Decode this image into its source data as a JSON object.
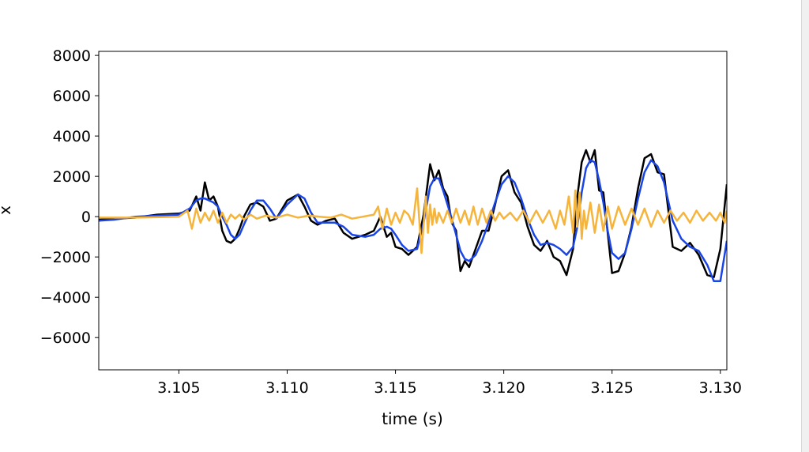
{
  "chart_data": {
    "type": "line",
    "title": "",
    "xlabel": "time (s)",
    "ylabel": "x",
    "xlim": [
      3.1013,
      3.1303
    ],
    "ylim": [
      -7600,
      8200
    ],
    "grid": false,
    "legend": "none",
    "xticks": [
      3.105,
      3.11,
      3.115,
      3.12,
      3.125,
      3.13
    ],
    "xtick_labels": [
      "3.105",
      "3.110",
      "3.115",
      "3.120",
      "3.125",
      "3.130"
    ],
    "yticks": [
      -6000,
      -4000,
      -2000,
      0,
      2000,
      4000,
      6000,
      8000
    ],
    "ytick_labels": [
      "−6000",
      "−4000",
      "−2000",
      "0",
      "2000",
      "4000",
      "6000",
      "8000"
    ],
    "series": [
      {
        "color": "#000000",
        "x": [
          3.1013,
          3.102,
          3.103,
          3.104,
          3.105,
          3.1055,
          3.1058,
          3.106,
          3.1062,
          3.1064,
          3.1066,
          3.1068,
          3.107,
          3.1072,
          3.1074,
          3.1076,
          3.1078,
          3.108,
          3.1083,
          3.1086,
          3.1089,
          3.1092,
          3.1095,
          3.11,
          3.1105,
          3.1108,
          3.1111,
          3.1114,
          3.1118,
          3.1122,
          3.1126,
          3.113,
          3.1136,
          3.114,
          3.1143,
          3.1146,
          3.1148,
          3.115,
          3.1153,
          3.1156,
          3.116,
          3.1163,
          3.1166,
          3.1168,
          3.117,
          3.1172,
          3.1174,
          3.1176,
          3.1178,
          3.118,
          3.1182,
          3.1184,
          3.1187,
          3.119,
          3.1193,
          3.1196,
          3.1199,
          3.1202,
          3.1205,
          3.1208,
          3.1211,
          3.1214,
          3.1217,
          3.122,
          3.1223,
          3.1226,
          3.1229,
          3.1232,
          3.1234,
          3.1236,
          3.1238,
          3.124,
          3.1242,
          3.1244,
          3.1246,
          3.1248,
          3.125,
          3.1253,
          3.1256,
          3.1259,
          3.1262,
          3.1265,
          3.1268,
          3.1271,
          3.1274,
          3.1278,
          3.1282,
          3.1286,
          3.129,
          3.1294,
          3.1297,
          3.13,
          3.1303
        ],
        "y": [
          -150,
          -100,
          -50,
          100,
          150,
          300,
          1000,
          300,
          1700,
          800,
          1000,
          500,
          -700,
          -1200,
          -1300,
          -1100,
          -600,
          0,
          600,
          700,
          500,
          -200,
          -100,
          800,
          1100,
          500,
          -200,
          -400,
          -200,
          -100,
          -800,
          -1100,
          -900,
          -700,
          0,
          -1000,
          -800,
          -1500,
          -1600,
          -1900,
          -1500,
          100,
          2600,
          1800,
          2300,
          1400,
          1000,
          -300,
          -700,
          -2700,
          -2200,
          -2500,
          -1600,
          -700,
          -700,
          600,
          2000,
          2300,
          1200,
          700,
          -500,
          -1400,
          -1700,
          -1200,
          -2000,
          -2200,
          -2900,
          -1600,
          1000,
          2700,
          3300,
          2700,
          3300,
          1300,
          1200,
          -800,
          -2800,
          -2700,
          -1800,
          -500,
          1400,
          2900,
          3100,
          2200,
          2100,
          -1500,
          -1700,
          -1300,
          -1900,
          -2900,
          -3000,
          -1600,
          1600
        ]
      },
      {
        "color": "#1a45e6",
        "x": [
          3.1013,
          3.102,
          3.103,
          3.104,
          3.105,
          3.1055,
          3.1058,
          3.106,
          3.1062,
          3.1064,
          3.1066,
          3.1068,
          3.107,
          3.1072,
          3.1074,
          3.1076,
          3.1078,
          3.108,
          3.1083,
          3.1086,
          3.1089,
          3.1092,
          3.1095,
          3.11,
          3.1105,
          3.1108,
          3.1111,
          3.1114,
          3.1118,
          3.1122,
          3.1126,
          3.113,
          3.1136,
          3.114,
          3.1143,
          3.1146,
          3.1148,
          3.115,
          3.1153,
          3.1156,
          3.116,
          3.1163,
          3.1166,
          3.1168,
          3.117,
          3.1172,
          3.1174,
          3.1176,
          3.1178,
          3.118,
          3.1182,
          3.1184,
          3.1187,
          3.119,
          3.1193,
          3.1196,
          3.1199,
          3.1202,
          3.1205,
          3.1208,
          3.1211,
          3.1214,
          3.1217,
          3.122,
          3.1223,
          3.1226,
          3.1229,
          3.1232,
          3.1234,
          3.1236,
          3.1238,
          3.124,
          3.1242,
          3.1244,
          3.1246,
          3.1248,
          3.125,
          3.1253,
          3.1256,
          3.1259,
          3.1262,
          3.1265,
          3.1268,
          3.1271,
          3.1274,
          3.1278,
          3.1282,
          3.1286,
          3.129,
          3.1294,
          3.1297,
          3.13,
          3.1303
        ],
        "y": [
          -200,
          -150,
          0,
          50,
          100,
          400,
          800,
          900,
          900,
          800,
          700,
          500,
          0,
          -400,
          -900,
          -1100,
          -900,
          -400,
          300,
          800,
          800,
          400,
          -100,
          600,
          1100,
          900,
          200,
          -300,
          -300,
          -300,
          -500,
          -900,
          -1000,
          -900,
          -600,
          -500,
          -600,
          -900,
          -1400,
          -1700,
          -1600,
          -300,
          1500,
          1900,
          1900,
          1300,
          600,
          -100,
          -900,
          -1700,
          -2100,
          -2200,
          -1900,
          -1200,
          -300,
          700,
          1600,
          2000,
          1700,
          900,
          -100,
          -900,
          -1400,
          -1300,
          -1400,
          -1600,
          -1900,
          -1500,
          -500,
          1200,
          2400,
          2800,
          2700,
          1800,
          700,
          -700,
          -1800,
          -2100,
          -1800,
          -600,
          900,
          2200,
          2800,
          2500,
          1700,
          -200,
          -1100,
          -1500,
          -1700,
          -2400,
          -3200,
          -3200,
          -1200
        ]
      },
      {
        "color": "#f5b43c",
        "x": [
          3.1013,
          3.103,
          3.105,
          3.1054,
          3.1056,
          3.1058,
          3.106,
          3.1062,
          3.1064,
          3.1066,
          3.1068,
          3.107,
          3.1072,
          3.1074,
          3.1076,
          3.1078,
          3.108,
          3.1083,
          3.1086,
          3.109,
          3.1095,
          3.11,
          3.1105,
          3.111,
          3.1115,
          3.112,
          3.1125,
          3.113,
          3.1135,
          3.114,
          3.1142,
          3.1144,
          3.1146,
          3.1148,
          3.115,
          3.1152,
          3.1154,
          3.1156,
          3.1158,
          3.116,
          3.1162,
          3.1164,
          3.1165,
          3.1166,
          3.1167,
          3.1168,
          3.1169,
          3.117,
          3.1172,
          3.1174,
          3.1176,
          3.1178,
          3.118,
          3.1182,
          3.1184,
          3.1186,
          3.1188,
          3.119,
          3.1192,
          3.1194,
          3.1196,
          3.1198,
          3.12,
          3.1203,
          3.1206,
          3.1209,
          3.1212,
          3.1215,
          3.1218,
          3.1221,
          3.1224,
          3.1226,
          3.1228,
          3.123,
          3.1232,
          3.1233,
          3.1234,
          3.1235,
          3.1236,
          3.1237,
          3.1238,
          3.124,
          3.1242,
          3.1244,
          3.1246,
          3.1248,
          3.125,
          3.1253,
          3.1256,
          3.1259,
          3.1262,
          3.1265,
          3.1268,
          3.1271,
          3.1274,
          3.1277,
          3.128,
          3.1283,
          3.1286,
          3.1289,
          3.1292,
          3.1295,
          3.1298,
          3.13,
          3.1302,
          3.1303
        ],
        "y": [
          -50,
          -50,
          0,
          300,
          -600,
          400,
          -300,
          200,
          -200,
          300,
          -300,
          200,
          -300,
          100,
          -100,
          100,
          -150,
          100,
          -100,
          50,
          -50,
          100,
          -50,
          50,
          0,
          -50,
          100,
          -100,
          0,
          100,
          500,
          -600,
          400,
          -400,
          200,
          -300,
          300,
          100,
          -400,
          1400,
          -1800,
          1000,
          -800,
          600,
          -400,
          400,
          -300,
          200,
          -300,
          300,
          -300,
          400,
          -300,
          300,
          -400,
          500,
          -400,
          400,
          -300,
          300,
          -200,
          200,
          -100,
          200,
          -200,
          300,
          -300,
          300,
          -300,
          300,
          -600,
          300,
          -400,
          1000,
          -800,
          1300,
          -500,
          1200,
          -1100,
          300,
          -600,
          700,
          -800,
          600,
          -700,
          500,
          -600,
          500,
          -400,
          400,
          -400,
          400,
          -500,
          300,
          -300,
          300,
          -200,
          200,
          -300,
          300,
          -200,
          200,
          -200,
          200,
          -300,
          300
        ]
      }
    ]
  }
}
